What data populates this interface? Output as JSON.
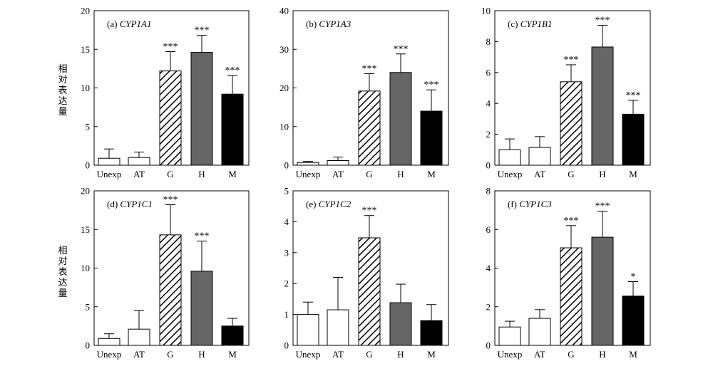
{
  "y_axis_label": "相对表达量",
  "chart_data": [
    {
      "type": "bar",
      "title_prefix": "(a)",
      "title_gene": "CYP1A1",
      "categories": [
        "Unexp",
        "AT",
        "G",
        "H",
        "M"
      ],
      "values": [
        0.9,
        1.0,
        12.2,
        14.6,
        9.2
      ],
      "errors": [
        1.2,
        0.7,
        2.5,
        2.2,
        2.4
      ],
      "significance": [
        "",
        "",
        "***",
        "***",
        "***"
      ],
      "fills": [
        "white",
        "white",
        "hatch",
        "gray",
        "black"
      ],
      "ylim": [
        0,
        20
      ],
      "yticks": [
        0,
        5,
        10,
        15,
        20
      ]
    },
    {
      "type": "bar",
      "title_prefix": "(b)",
      "title_gene": "CYP1A3",
      "categories": [
        "Unexp",
        "AT",
        "G",
        "H",
        "M"
      ],
      "values": [
        0.7,
        1.2,
        19.2,
        24.0,
        14.0
      ],
      "errors": [
        0.3,
        0.9,
        4.5,
        4.8,
        5.5
      ],
      "significance": [
        "",
        "",
        "***",
        "***",
        "***"
      ],
      "fills": [
        "white",
        "white",
        "hatch",
        "gray",
        "black"
      ],
      "ylim": [
        0,
        40
      ],
      "yticks": [
        0,
        10,
        20,
        30,
        40
      ]
    },
    {
      "type": "bar",
      "title_prefix": "(c)",
      "title_gene": "CYP1B1",
      "categories": [
        "Unexp",
        "AT",
        "G",
        "H",
        "M"
      ],
      "values": [
        1.0,
        1.15,
        5.4,
        7.65,
        3.3
      ],
      "errors": [
        0.7,
        0.7,
        1.1,
        1.4,
        0.9
      ],
      "significance": [
        "",
        "",
        "***",
        "***",
        "***"
      ],
      "fills": [
        "white",
        "white",
        "hatch",
        "gray",
        "black"
      ],
      "ylim": [
        0,
        10
      ],
      "yticks": [
        0,
        2,
        4,
        6,
        8,
        10
      ]
    },
    {
      "type": "bar",
      "title_prefix": "(d)",
      "title_gene": "CYP1C1",
      "categories": [
        "Unexp",
        "AT",
        "G",
        "H",
        "M"
      ],
      "values": [
        0.9,
        2.1,
        14.3,
        9.6,
        2.5
      ],
      "errors": [
        0.6,
        2.4,
        3.9,
        3.9,
        1.0
      ],
      "significance": [
        "",
        "",
        "***",
        "***",
        ""
      ],
      "fills": [
        "white",
        "white",
        "hatch",
        "gray",
        "black"
      ],
      "ylim": [
        0,
        20
      ],
      "yticks": [
        0,
        5,
        10,
        15,
        20
      ]
    },
    {
      "type": "bar",
      "title_prefix": "(e)",
      "title_gene": "CYP1C2",
      "categories": [
        "Unexp",
        "AT",
        "G",
        "H",
        "M"
      ],
      "values": [
        1.0,
        1.15,
        3.48,
        1.38,
        0.8
      ],
      "errors": [
        0.4,
        1.05,
        0.72,
        0.6,
        0.52
      ],
      "significance": [
        "",
        "",
        "***",
        "",
        ""
      ],
      "fills": [
        "white",
        "white",
        "hatch",
        "gray",
        "black"
      ],
      "ylim": [
        0,
        5
      ],
      "yticks": [
        0,
        1,
        2,
        3,
        4,
        5
      ]
    },
    {
      "type": "bar",
      "title_prefix": "(f)",
      "title_gene": "CYP1C3",
      "categories": [
        "Unexp",
        "AT",
        "G",
        "H",
        "M"
      ],
      "values": [
        0.95,
        1.4,
        5.05,
        5.6,
        2.55
      ],
      "errors": [
        0.3,
        0.45,
        1.15,
        1.35,
        0.75
      ],
      "significance": [
        "",
        "",
        "***",
        "***",
        "*"
      ],
      "fills": [
        "white",
        "white",
        "hatch",
        "gray",
        "black"
      ],
      "ylim": [
        0,
        8
      ],
      "yticks": [
        0,
        2,
        4,
        6,
        8
      ]
    }
  ],
  "colors": {
    "axis": "#000000",
    "gray_bar": "#666666",
    "black_bar": "#000000",
    "white_bar": "#ffffff"
  }
}
